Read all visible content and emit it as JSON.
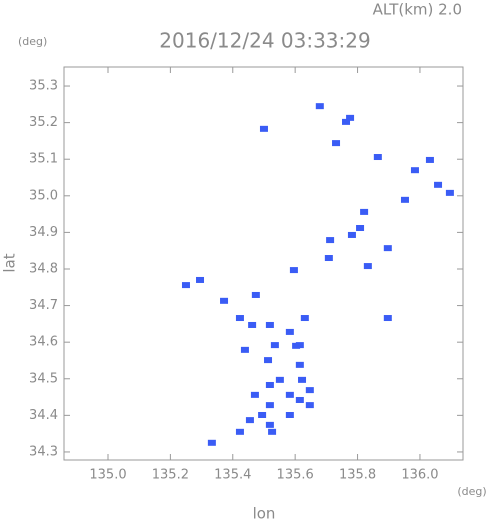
{
  "chart_data": {
    "type": "scatter",
    "top_label": "ALT(km) 2.0",
    "title": "2016/12/24 03:33:29",
    "y_unit": "(deg)",
    "x_unit": "(deg)",
    "xlabel": "lon",
    "ylabel": "lat",
    "color": "#3a5cf5",
    "xlim": [
      134.859,
      136.138
    ],
    "ylim": [
      34.278,
      35.352
    ],
    "xticks": [
      {
        "value": 135,
        "label": "135.0"
      },
      135.2,
      135.4,
      135.6,
      135.8,
      {
        "value": 136,
        "label": "136.0"
      }
    ],
    "yticks": [
      34.3,
      34.4,
      34.5,
      34.6,
      34.7,
      34.8,
      34.9,
      {
        "value": 35,
        "label": "35.0"
      },
      35.1,
      35.2,
      35.3
    ],
    "x": [
      135.679,
      135.776,
      135.763,
      135.5,
      135.731,
      135.865,
      135.984,
      136.032,
      136.058,
      135.952,
      136.096,
      135.821,
      135.782,
      135.808,
      135.897,
      135.712,
      135.833,
      135.708,
      135.596,
      135.295,
      135.25,
      135.897,
      135.423,
      135.462,
      135.519,
      135.631,
      135.583,
      135.615,
      135.439,
      135.535,
      135.513,
      135.615,
      135.551,
      135.622,
      135.519,
      135.647,
      135.471,
      135.583,
      135.615,
      135.519,
      135.647,
      135.494,
      135.583,
      135.519,
      135.455,
      135.423,
      135.526,
      135.333,
      135.603,
      135.372,
      135.474
    ],
    "y": [
      35.245,
      35.213,
      35.202,
      35.183,
      35.144,
      35.106,
      35.07,
      35.098,
      35.03,
      34.989,
      35.008,
      34.956,
      34.893,
      34.912,
      34.857,
      34.879,
      34.808,
      34.83,
      34.797,
      34.77,
      34.756,
      34.666,
      34.666,
      34.647,
      34.647,
      34.666,
      34.628,
      34.592,
      34.579,
      34.592,
      34.551,
      34.538,
      34.497,
      34.497,
      34.483,
      34.469,
      34.456,
      34.456,
      34.442,
      34.428,
      34.428,
      34.401,
      34.401,
      34.374,
      34.387,
      34.355,
      34.355,
      34.325,
      34.59,
      34.713,
      34.729
    ]
  }
}
